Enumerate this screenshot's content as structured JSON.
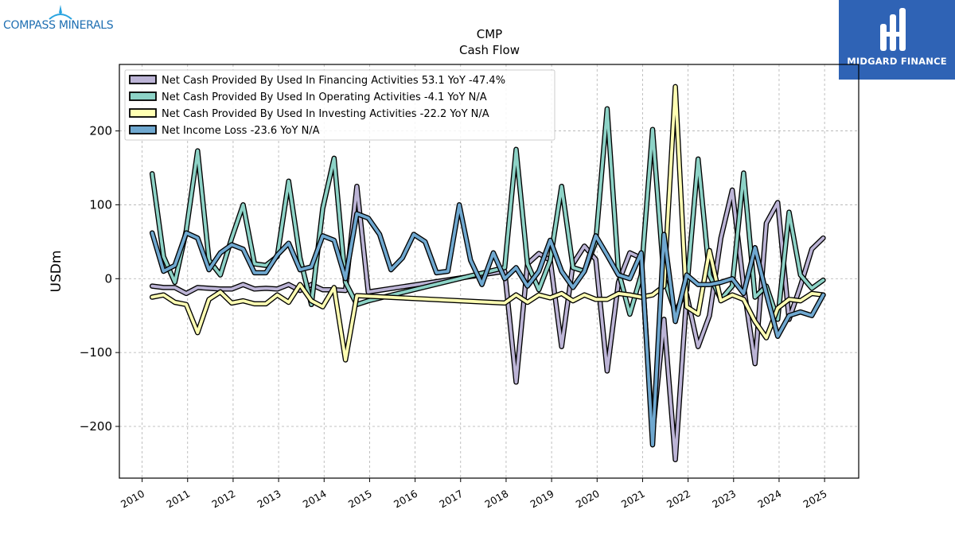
{
  "branding": {
    "left_logo_text": "COMPASS MINERALS",
    "right_logo_text": "MIDGARD FINANCE",
    "right_logo_bg": "#2f63b5",
    "left_logo_color": "#1f6fb2"
  },
  "chart_data": {
    "type": "line",
    "title": "CMP",
    "subtitle": "Cash Flow",
    "xlabel": "",
    "ylabel": "USDm",
    "xlim": [
      2009.5,
      2025.75
    ],
    "ylim": [
      -270,
      290
    ],
    "yticks": [
      -200,
      -100,
      0,
      100,
      200
    ],
    "ytick_labels": [
      "−200",
      "−100",
      "0",
      "100",
      "200"
    ],
    "xticks": [
      2010,
      2011,
      2012,
      2013,
      2014,
      2015,
      2016,
      2017,
      2018,
      2019,
      2020,
      2021,
      2022,
      2023,
      2024,
      2025
    ],
    "xtick_labels": [
      "2010",
      "2011",
      "2012",
      "2013",
      "2014",
      "2015",
      "2016",
      "2017",
      "2018",
      "2019",
      "2020",
      "2021",
      "2022",
      "2023",
      "2024",
      "2025"
    ],
    "grid": true,
    "legend_position": "top-left",
    "series": [
      {
        "name": "Net Cash Provided By Used In Financing Activities  53.1 YoY -47.4%",
        "color": "#bcb4d6",
        "points": [
          [
            2010.22,
            -10
          ],
          [
            2010.47,
            -12
          ],
          [
            2010.72,
            -12
          ],
          [
            2010.97,
            -20
          ],
          [
            2011.22,
            -12
          ],
          [
            2011.47,
            -13
          ],
          [
            2011.72,
            -14
          ],
          [
            2011.97,
            -14
          ],
          [
            2012.22,
            -8
          ],
          [
            2012.47,
            -14
          ],
          [
            2012.72,
            -13
          ],
          [
            2012.97,
            -14
          ],
          [
            2013.22,
            -8
          ],
          [
            2013.47,
            -16
          ],
          [
            2013.72,
            -8
          ],
          [
            2013.97,
            -15
          ],
          [
            2014.22,
            -15
          ],
          [
            2014.47,
            -16
          ],
          [
            2014.72,
            125
          ],
          [
            2014.97,
            -18
          ],
          [
            2017.97,
            10
          ],
          [
            2018.22,
            -140
          ],
          [
            2018.47,
            20
          ],
          [
            2018.72,
            34
          ],
          [
            2018.97,
            25
          ],
          [
            2019.22,
            -92
          ],
          [
            2019.47,
            20
          ],
          [
            2019.72,
            44
          ],
          [
            2019.97,
            26
          ],
          [
            2020.22,
            -125
          ],
          [
            2020.47,
            -5
          ],
          [
            2020.72,
            35
          ],
          [
            2020.97,
            28
          ],
          [
            2021.22,
            -210
          ],
          [
            2021.47,
            -55
          ],
          [
            2021.72,
            -245
          ],
          [
            2021.97,
            -22
          ],
          [
            2022.22,
            -92
          ],
          [
            2022.47,
            -50
          ],
          [
            2022.72,
            55
          ],
          [
            2022.97,
            120
          ],
          [
            2023.22,
            -10
          ],
          [
            2023.47,
            -115
          ],
          [
            2023.72,
            75
          ],
          [
            2023.97,
            103
          ],
          [
            2024.22,
            -55
          ],
          [
            2024.47,
            -10
          ],
          [
            2024.72,
            40
          ],
          [
            2024.97,
            55
          ]
        ]
      },
      {
        "name": "Net Cash Provided By Used In Operating Activities  -4.1 YoY N/A",
        "color": "#8dd3c7",
        "points": [
          [
            2010.22,
            142
          ],
          [
            2010.47,
            30
          ],
          [
            2010.72,
            -5
          ],
          [
            2010.97,
            65
          ],
          [
            2011.22,
            173
          ],
          [
            2011.47,
            25
          ],
          [
            2011.72,
            5
          ],
          [
            2011.97,
            55
          ],
          [
            2012.22,
            100
          ],
          [
            2012.47,
            20
          ],
          [
            2012.72,
            18
          ],
          [
            2012.97,
            30
          ],
          [
            2013.22,
            132
          ],
          [
            2013.47,
            28
          ],
          [
            2013.72,
            -35
          ],
          [
            2013.97,
            95
          ],
          [
            2014.22,
            163
          ],
          [
            2014.47,
            -5
          ],
          [
            2014.72,
            -35
          ],
          [
            2014.97,
            -30
          ],
          [
            2017.97,
            15
          ],
          [
            2018.22,
            175
          ],
          [
            2018.47,
            20
          ],
          [
            2018.72,
            -15
          ],
          [
            2018.97,
            25
          ],
          [
            2019.22,
            125
          ],
          [
            2019.47,
            15
          ],
          [
            2019.72,
            10
          ],
          [
            2019.97,
            50
          ],
          [
            2020.22,
            230
          ],
          [
            2020.47,
            10
          ],
          [
            2020.72,
            -48
          ],
          [
            2020.97,
            5
          ],
          [
            2021.22,
            202
          ],
          [
            2021.47,
            0
          ],
          [
            2021.72,
            -45
          ],
          [
            2021.97,
            -15
          ],
          [
            2022.22,
            162
          ],
          [
            2022.47,
            5
          ],
          [
            2022.72,
            -28
          ],
          [
            2022.97,
            -10
          ],
          [
            2023.22,
            143
          ],
          [
            2023.47,
            -25
          ],
          [
            2023.72,
            -10
          ],
          [
            2023.97,
            -55
          ],
          [
            2024.22,
            90
          ],
          [
            2024.47,
            5
          ],
          [
            2024.72,
            -13
          ],
          [
            2024.97,
            -2
          ]
        ]
      },
      {
        "name": "Net Cash Provided By Used In Investing Activities  -22.2 YoY N/A",
        "color": "#ffffb3",
        "points": [
          [
            2010.22,
            -25
          ],
          [
            2010.47,
            -22
          ],
          [
            2010.72,
            -32
          ],
          [
            2010.97,
            -35
          ],
          [
            2011.22,
            -73
          ],
          [
            2011.47,
            -28
          ],
          [
            2011.72,
            -18
          ],
          [
            2011.97,
            -33
          ],
          [
            2012.22,
            -30
          ],
          [
            2012.47,
            -34
          ],
          [
            2012.72,
            -34
          ],
          [
            2012.97,
            -22
          ],
          [
            2013.22,
            -32
          ],
          [
            2013.47,
            -8
          ],
          [
            2013.72,
            -30
          ],
          [
            2013.97,
            -38
          ],
          [
            2014.22,
            -12
          ],
          [
            2014.47,
            -110
          ],
          [
            2014.72,
            -23
          ],
          [
            2017.97,
            -33
          ],
          [
            2018.22,
            -22
          ],
          [
            2018.47,
            -32
          ],
          [
            2018.72,
            -22
          ],
          [
            2018.97,
            -26
          ],
          [
            2019.22,
            -20
          ],
          [
            2019.47,
            -30
          ],
          [
            2019.72,
            -22
          ],
          [
            2019.97,
            -28
          ],
          [
            2020.22,
            -28
          ],
          [
            2020.47,
            -20
          ],
          [
            2020.72,
            -22
          ],
          [
            2020.97,
            -25
          ],
          [
            2021.22,
            -22
          ],
          [
            2021.47,
            -10
          ],
          [
            2021.72,
            260
          ],
          [
            2021.97,
            -38
          ],
          [
            2022.22,
            -48
          ],
          [
            2022.47,
            38
          ],
          [
            2022.72,
            -30
          ],
          [
            2022.97,
            -22
          ],
          [
            2023.22,
            -28
          ],
          [
            2023.47,
            -58
          ],
          [
            2023.72,
            -80
          ],
          [
            2023.97,
            -40
          ],
          [
            2024.22,
            -28
          ],
          [
            2024.47,
            -30
          ],
          [
            2024.72,
            -20
          ],
          [
            2024.97,
            -22
          ]
        ]
      },
      {
        "name": "Net Income Loss  -23.6 YoY N/A",
        "color": "#6fa8d0",
        "points": [
          [
            2010.22,
            62
          ],
          [
            2010.47,
            10
          ],
          [
            2010.72,
            18
          ],
          [
            2010.97,
            62
          ],
          [
            2011.22,
            55
          ],
          [
            2011.47,
            12
          ],
          [
            2011.72,
            35
          ],
          [
            2011.97,
            46
          ],
          [
            2012.22,
            40
          ],
          [
            2012.47,
            8
          ],
          [
            2012.72,
            8
          ],
          [
            2012.97,
            32
          ],
          [
            2013.22,
            48
          ],
          [
            2013.47,
            12
          ],
          [
            2013.72,
            16
          ],
          [
            2013.97,
            58
          ],
          [
            2014.22,
            52
          ],
          [
            2014.47,
            0
          ],
          [
            2014.72,
            88
          ],
          [
            2014.97,
            82
          ],
          [
            2015.22,
            60
          ],
          [
            2015.47,
            12
          ],
          [
            2015.72,
            28
          ],
          [
            2015.97,
            60
          ],
          [
            2016.22,
            50
          ],
          [
            2016.47,
            8
          ],
          [
            2016.72,
            10
          ],
          [
            2016.97,
            100
          ],
          [
            2017.22,
            25
          ],
          [
            2017.47,
            -8
          ],
          [
            2017.72,
            35
          ],
          [
            2017.97,
            0
          ],
          [
            2018.22,
            15
          ],
          [
            2018.47,
            -10
          ],
          [
            2018.72,
            10
          ],
          [
            2018.97,
            52
          ],
          [
            2019.22,
            10
          ],
          [
            2019.47,
            -12
          ],
          [
            2019.72,
            10
          ],
          [
            2019.97,
            58
          ],
          [
            2020.22,
            32
          ],
          [
            2020.47,
            5
          ],
          [
            2020.72,
            0
          ],
          [
            2020.97,
            35
          ],
          [
            2021.22,
            -225
          ],
          [
            2021.47,
            60
          ],
          [
            2021.72,
            -58
          ],
          [
            2021.97,
            5
          ],
          [
            2022.22,
            -8
          ],
          [
            2022.47,
            -8
          ],
          [
            2022.72,
            -5
          ],
          [
            2022.97,
            0
          ],
          [
            2023.22,
            -20
          ],
          [
            2023.47,
            42
          ],
          [
            2023.72,
            -20
          ],
          [
            2023.97,
            -78
          ],
          [
            2024.22,
            -50
          ],
          [
            2024.47,
            -45
          ],
          [
            2024.72,
            -50
          ],
          [
            2024.97,
            -22
          ]
        ]
      }
    ]
  }
}
